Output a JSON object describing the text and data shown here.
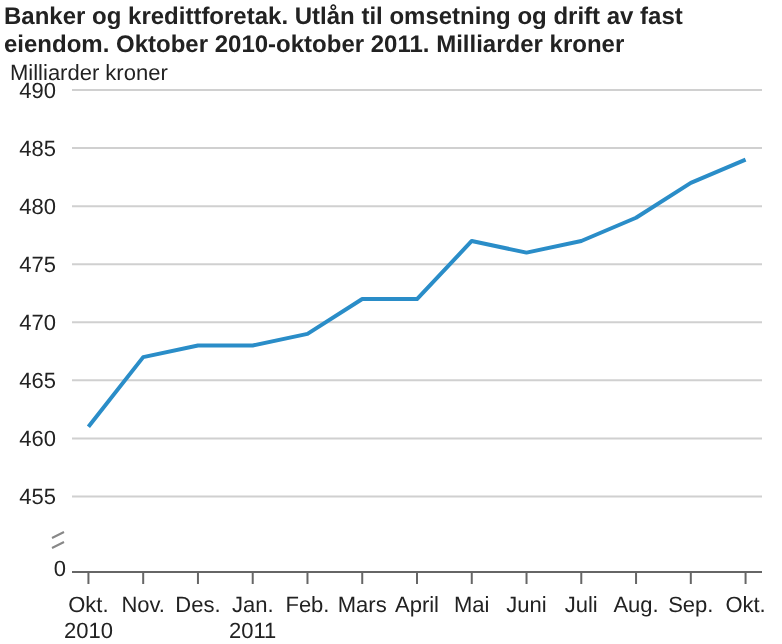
{
  "chart_data": {
    "type": "line",
    "title": "Banker og kredittforetak. Utlån til omsetning og drift av fast eiendom. Oktober 2010-oktober 2011. Milliarder kroner",
    "ylabel": "Milliarder kroner",
    "categories": [
      "Okt. 2010",
      "Nov.",
      "Des.",
      "Jan. 2011",
      "Feb.",
      "Mars",
      "April",
      "Mai",
      "Juni",
      "Juli",
      "Aug.",
      "Sep.",
      "Okt."
    ],
    "series": [
      {
        "color": "#2a8dc8",
        "values": [
          461,
          467,
          468,
          468,
          469,
          472,
          472,
          477,
          476,
          477,
          479,
          482,
          484
        ]
      }
    ],
    "ylim": [
      448.5,
      490
    ],
    "annotations": [
      "0"
    ],
    "yticks": [
      455,
      460,
      465,
      470,
      475,
      480,
      485,
      490
    ],
    "grid": "y",
    "legend": false,
    "marker": "none",
    "line_style": "solid"
  }
}
